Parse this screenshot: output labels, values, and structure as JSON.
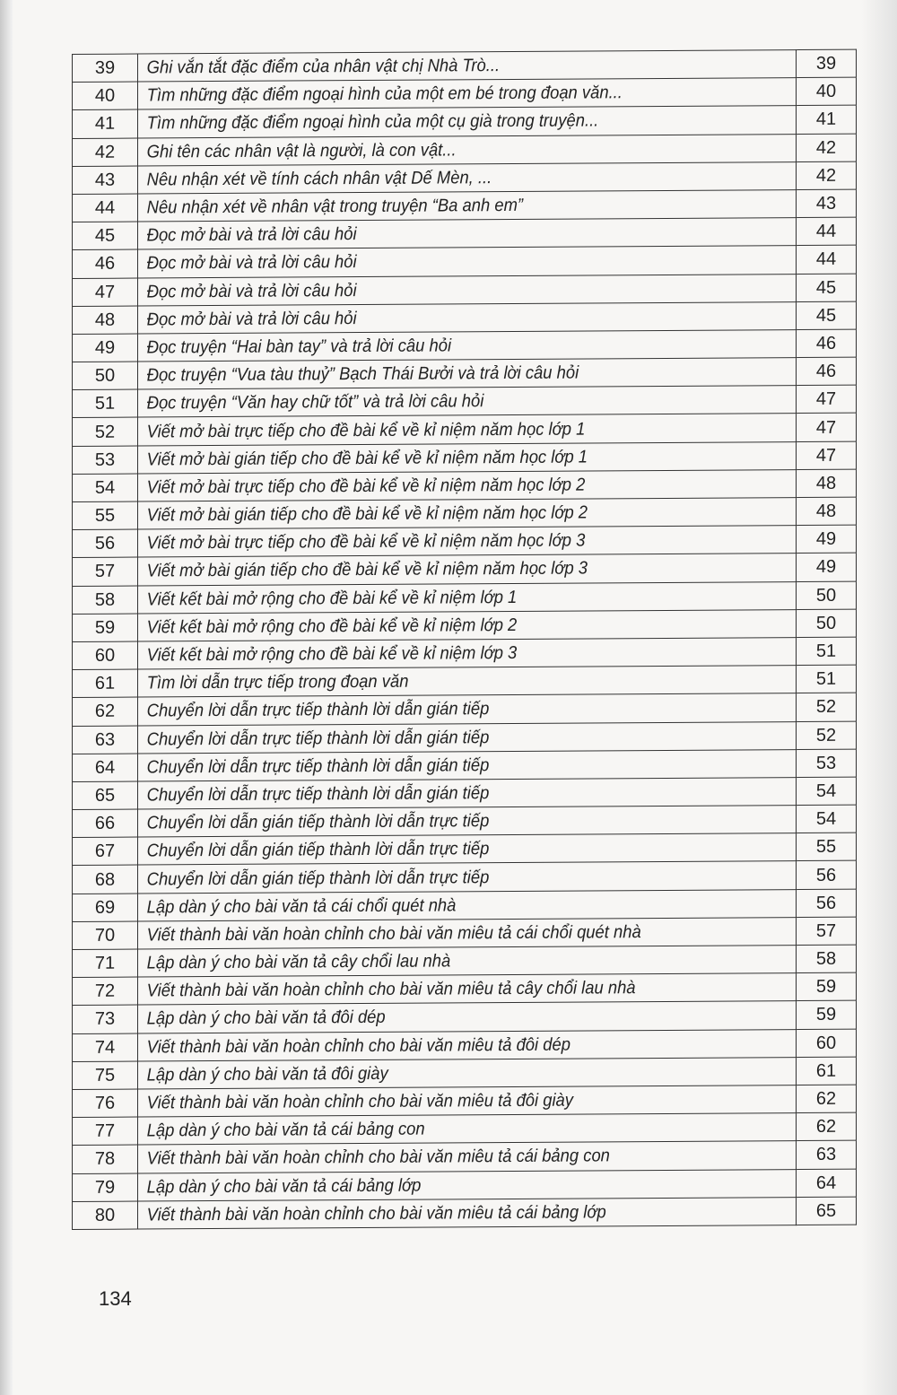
{
  "page_number": "134",
  "rows": [
    {
      "num": "39",
      "title": "Ghi vắn tắt đặc điểm của nhân vật chị Nhà Trò...",
      "page": "39"
    },
    {
      "num": "40",
      "title": "Tìm những đặc điểm ngoại hình của một em bé trong đoạn văn...",
      "page": "40"
    },
    {
      "num": "41",
      "title": "Tìm những đặc điểm ngoại hình của một cụ già trong truyện...",
      "page": "41"
    },
    {
      "num": "42",
      "title": "Ghi tên các nhân vật là người, là con vật...",
      "page": "42"
    },
    {
      "num": "43",
      "title": "Nêu nhận xét về tính cách nhân vật Dế Mèn, ...",
      "page": "42"
    },
    {
      "num": "44",
      "title": "Nêu nhận xét về nhân vật trong truyện “Ba anh em”",
      "page": "43"
    },
    {
      "num": "45",
      "title": "Đọc mở bài và trả lời câu hỏi",
      "page": "44"
    },
    {
      "num": "46",
      "title": "Đọc mở bài và trả lời câu hỏi",
      "page": "44"
    },
    {
      "num": "47",
      "title": "Đọc mở bài và trả lời câu hỏi",
      "page": "45"
    },
    {
      "num": "48",
      "title": "Đọc mở bài và trả lời câu hỏi",
      "page": "45"
    },
    {
      "num": "49",
      "title": "Đọc truyện “Hai bàn tay” và trả lời câu hỏi",
      "page": "46"
    },
    {
      "num": "50",
      "title": "Đọc truyện “Vua tàu thuỷ” Bạch Thái Bưởi và trả lời câu hỏi",
      "page": "46"
    },
    {
      "num": "51",
      "title": "Đọc truyện “Văn hay chữ tốt” và trả lời câu hỏi",
      "page": "47"
    },
    {
      "num": "52",
      "title": "Viết mở bài trực tiếp cho đề bài kể về kỉ niệm năm học lớp 1",
      "page": "47"
    },
    {
      "num": "53",
      "title": "Viết mở bài gián tiếp cho đề bài kể về kỉ niệm năm học lớp 1",
      "page": "47"
    },
    {
      "num": "54",
      "title": "Viết mở bài trực tiếp cho đề bài kể về kỉ niệm năm học lớp 2",
      "page": "48"
    },
    {
      "num": "55",
      "title": "Viết mở bài gián tiếp cho đề bài kể về kỉ niệm năm học lớp 2",
      "page": "48"
    },
    {
      "num": "56",
      "title": "Viết mở bài trực tiếp cho đề bài kể về kỉ niệm năm học lớp 3",
      "page": "49"
    },
    {
      "num": "57",
      "title": "Viết mở bài gián tiếp cho đề bài kể về kỉ niệm năm học lớp 3",
      "page": "49"
    },
    {
      "num": "58",
      "title": "Viết kết bài mở rộng cho đề bài kể về kỉ niệm lớp 1",
      "page": "50"
    },
    {
      "num": "59",
      "title": "Viết kết bài mở rộng cho đề bài kể về kỉ niệm lớp 2",
      "page": "50"
    },
    {
      "num": "60",
      "title": "Viết kết bài mở rộng cho đề bài kể về kỉ niệm lớp 3",
      "page": "51"
    },
    {
      "num": "61",
      "title": "Tìm lời dẫn trực tiếp trong đoạn văn",
      "page": "51"
    },
    {
      "num": "62",
      "title": "Chuyển lời dẫn trực tiếp thành lời dẫn gián tiếp",
      "page": "52"
    },
    {
      "num": "63",
      "title": "Chuyển lời dẫn trực tiếp thành lời dẫn gián tiếp",
      "page": "52"
    },
    {
      "num": "64",
      "title": "Chuyển lời dẫn trực tiếp thành lời dẫn gián tiếp",
      "page": "53"
    },
    {
      "num": "65",
      "title": "Chuyển lời dẫn trực tiếp thành lời dẫn gián tiếp",
      "page": "54"
    },
    {
      "num": "66",
      "title": "Chuyển lời dẫn gián tiếp thành lời dẫn trực tiếp",
      "page": "54"
    },
    {
      "num": "67",
      "title": "Chuyển lời dẫn gián tiếp thành lời dẫn trực tiếp",
      "page": "55"
    },
    {
      "num": "68",
      "title": "Chuyển lời dẫn gián tiếp thành lời dẫn trực tiếp",
      "page": "56"
    },
    {
      "num": "69",
      "title": "Lập dàn ý cho bài văn tả cái chổi quét nhà",
      "page": "56"
    },
    {
      "num": "70",
      "title": "Viết thành bài văn hoàn chỉnh cho bài văn miêu tả cái chổi quét nhà",
      "page": "57"
    },
    {
      "num": "71",
      "title": "Lập dàn ý cho bài văn tả cây chổi lau nhà",
      "page": "58"
    },
    {
      "num": "72",
      "title": "Viết thành bài văn hoàn chỉnh cho bài văn miêu tả cây chổi lau nhà",
      "page": "59"
    },
    {
      "num": "73",
      "title": "Lập dàn ý cho bài văn tả đôi dép",
      "page": "59"
    },
    {
      "num": "74",
      "title": "Viết thành bài văn hoàn chỉnh cho bài văn miêu tả đôi dép",
      "page": "60"
    },
    {
      "num": "75",
      "title": "Lập dàn ý cho bài văn tả đôi giày",
      "page": "61"
    },
    {
      "num": "76",
      "title": "Viết thành bài văn hoàn chỉnh cho bài văn miêu tả đôi giày",
      "page": "62"
    },
    {
      "num": "77",
      "title": "Lập dàn ý cho bài văn tả cái bảng con",
      "page": "62"
    },
    {
      "num": "78",
      "title": "Viết thành bài văn hoàn chỉnh cho bài văn miêu tả cái bảng con",
      "page": "63"
    },
    {
      "num": "79",
      "title": "Lập dàn ý cho bài văn tả cái bảng lớp",
      "page": "64"
    },
    {
      "num": "80",
      "title": "Viết thành bài văn hoàn chỉnh cho bài văn miêu tả cái bảng lớp",
      "page": "65"
    }
  ]
}
